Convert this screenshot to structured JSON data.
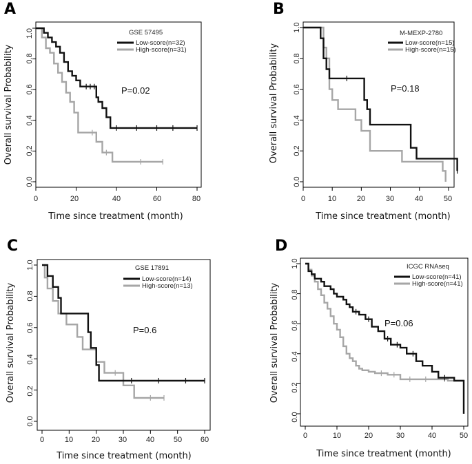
{
  "colors": {
    "low": "#111111",
    "high": "#a6a6a6"
  },
  "chart_data": [
    {
      "type": "line",
      "panel_label": "A",
      "dataset": "GSE 57495",
      "xlabel": "Time since treatment (month)",
      "ylabel": "Overall survival Probability",
      "xlim": [
        0,
        80
      ],
      "ylim": [
        0,
        1
      ],
      "xticks": [
        0,
        20,
        40,
        60,
        80
      ],
      "xtick_labels": [
        "0",
        "20",
        "40",
        "60",
        "80"
      ],
      "yticks": [
        0,
        0.2,
        0.4,
        0.6,
        0.8,
        1.0
      ],
      "ytick_labels": [
        "0.0",
        "0.2",
        "0.4",
        "0.6",
        "0.8",
        "1.0"
      ],
      "pvalue": "P=0.02",
      "series": [
        {
          "name": "Low-score(n=32)",
          "x": [
            0,
            4,
            6,
            8,
            10,
            12,
            14,
            16,
            18,
            20,
            22,
            30,
            31,
            33,
            35,
            37,
            80
          ],
          "y": [
            1.0,
            0.97,
            0.94,
            0.91,
            0.88,
            0.84,
            0.78,
            0.72,
            0.69,
            0.66,
            0.62,
            0.55,
            0.52,
            0.48,
            0.42,
            0.35,
            0.35
          ],
          "censor_x": [
            25,
            27,
            29,
            40,
            50,
            60,
            68,
            80
          ]
        },
        {
          "name": "High-score(n=31)",
          "x": [
            0,
            3,
            5,
            7,
            9,
            11,
            13,
            15,
            17,
            19,
            21,
            25,
            30,
            33,
            38,
            63
          ],
          "y": [
            1.0,
            0.94,
            0.87,
            0.84,
            0.77,
            0.71,
            0.65,
            0.58,
            0.52,
            0.45,
            0.32,
            0.32,
            0.26,
            0.19,
            0.13,
            0.13
          ],
          "censor_x": [
            28,
            35,
            52,
            63
          ]
        }
      ]
    },
    {
      "type": "line",
      "panel_label": "B",
      "dataset": "M-MEXP-2780",
      "xlabel": "Time since treatment (month)",
      "ylabel": "Overall survival Probability",
      "xlim": [
        0,
        55
      ],
      "ylim": [
        0,
        1
      ],
      "xticks": [
        0,
        10,
        20,
        30,
        40,
        50
      ],
      "xtick_labels": [
        "0",
        "10",
        "20",
        "30",
        "40",
        "50"
      ],
      "yticks": [
        0,
        0.2,
        0.4,
        0.6,
        0.8,
        1.0
      ],
      "ytick_labels": [
        "0.0",
        "0.2",
        "0.4",
        "0.6",
        "0.8",
        "1.0"
      ],
      "pvalue": "P=0.18",
      "series": [
        {
          "name": "Low-score(n=15)",
          "x": [
            0,
            6,
            7,
            8,
            9,
            21,
            22,
            23,
            37,
            39,
            53
          ],
          "y": [
            1.0,
            0.93,
            0.8,
            0.73,
            0.67,
            0.53,
            0.47,
            0.37,
            0.22,
            0.15,
            0.07
          ],
          "censor_x": [
            15,
            53
          ]
        },
        {
          "name": "High-score(n=15)",
          "x": [
            0,
            7,
            8,
            9,
            10,
            12,
            18,
            20,
            23,
            34,
            48,
            49
          ],
          "y": [
            1.0,
            0.87,
            0.8,
            0.6,
            0.53,
            0.47,
            0.4,
            0.33,
            0.2,
            0.13,
            0.07,
            0.0
          ],
          "censor_x": []
        }
      ]
    },
    {
      "type": "line",
      "panel_label": "C",
      "dataset": "GSE 17891",
      "xlabel": "Time since treatment  (month)",
      "ylabel": "Overall survival Probability",
      "xlim": [
        0,
        60
      ],
      "ylim": [
        0,
        1
      ],
      "xticks": [
        0,
        10,
        20,
        30,
        40,
        50,
        60
      ],
      "xtick_labels": [
        "0",
        "10",
        "20",
        "30",
        "40",
        "50",
        "60"
      ],
      "yticks": [
        0,
        0.2,
        0.4,
        0.6,
        0.8,
        1.0
      ],
      "ytick_labels": [
        "0.0",
        "0.2",
        "0.4",
        "0.6",
        "0.8",
        "1.0"
      ],
      "pvalue": "P=0.6",
      "series": [
        {
          "name": "Low-score(n=14)",
          "x": [
            0,
            2,
            4,
            6,
            7,
            17,
            18,
            20,
            21,
            60
          ],
          "y": [
            1.0,
            0.93,
            0.86,
            0.79,
            0.69,
            0.57,
            0.47,
            0.36,
            0.26,
            0.26
          ],
          "censor_x": [
            33,
            43,
            53,
            60
          ]
        },
        {
          "name": "High-score(n=13)",
          "x": [
            0,
            1,
            2,
            4,
            6,
            9,
            13,
            15,
            20,
            23,
            30,
            34,
            45
          ],
          "y": [
            1.0,
            0.92,
            0.85,
            0.77,
            0.69,
            0.62,
            0.54,
            0.46,
            0.38,
            0.31,
            0.23,
            0.15,
            0.15
          ],
          "censor_x": [
            27,
            40,
            45
          ]
        }
      ]
    },
    {
      "type": "line",
      "panel_label": "D",
      "dataset": "ICGC RNAseq",
      "xlabel": "Time since treatment  (month)",
      "ylabel": "Overall survival Probability",
      "xlim": [
        0,
        50
      ],
      "ylim": [
        0,
        1
      ],
      "xticks": [
        0,
        10,
        20,
        30,
        40,
        50
      ],
      "xtick_labels": [
        "0",
        "10",
        "20",
        "30",
        "40",
        "50"
      ],
      "yticks": [
        0,
        0.2,
        0.4,
        0.6,
        0.8,
        1.0
      ],
      "ytick_labels": [
        "0.0",
        "0.2",
        "0.4",
        "0.6",
        "0.8",
        "1.0"
      ],
      "pvalue": "P=0.06",
      "series": [
        {
          "name": "Low-score(n=41)",
          "x": [
            0,
            1,
            2,
            3,
            5,
            6,
            8,
            9,
            10,
            12,
            13,
            14,
            15,
            17,
            19,
            21,
            23,
            25,
            27,
            30,
            32,
            35,
            37,
            40,
            42,
            47,
            50
          ],
          "y": [
            1.0,
            0.95,
            0.93,
            0.9,
            0.88,
            0.85,
            0.83,
            0.8,
            0.78,
            0.76,
            0.73,
            0.71,
            0.68,
            0.66,
            0.63,
            0.58,
            0.55,
            0.5,
            0.46,
            0.44,
            0.4,
            0.35,
            0.32,
            0.28,
            0.24,
            0.22,
            0.0
          ],
          "censor_x": [
            16,
            20,
            26,
            29,
            34,
            44
          ]
        },
        {
          "name": "High-score(n=41)",
          "x": [
            0,
            1,
            2,
            3,
            4,
            5,
            6,
            7,
            8,
            9,
            10,
            11,
            12,
            13,
            14,
            15,
            16,
            17,
            18,
            20,
            22,
            26,
            30,
            45,
            50
          ],
          "y": [
            1.0,
            0.96,
            0.92,
            0.88,
            0.83,
            0.79,
            0.74,
            0.7,
            0.65,
            0.6,
            0.56,
            0.51,
            0.45,
            0.4,
            0.37,
            0.35,
            0.32,
            0.3,
            0.29,
            0.28,
            0.27,
            0.26,
            0.23,
            0.22,
            0.22
          ],
          "censor_x": [
            24,
            28,
            33,
            38,
            44
          ]
        }
      ]
    }
  ]
}
